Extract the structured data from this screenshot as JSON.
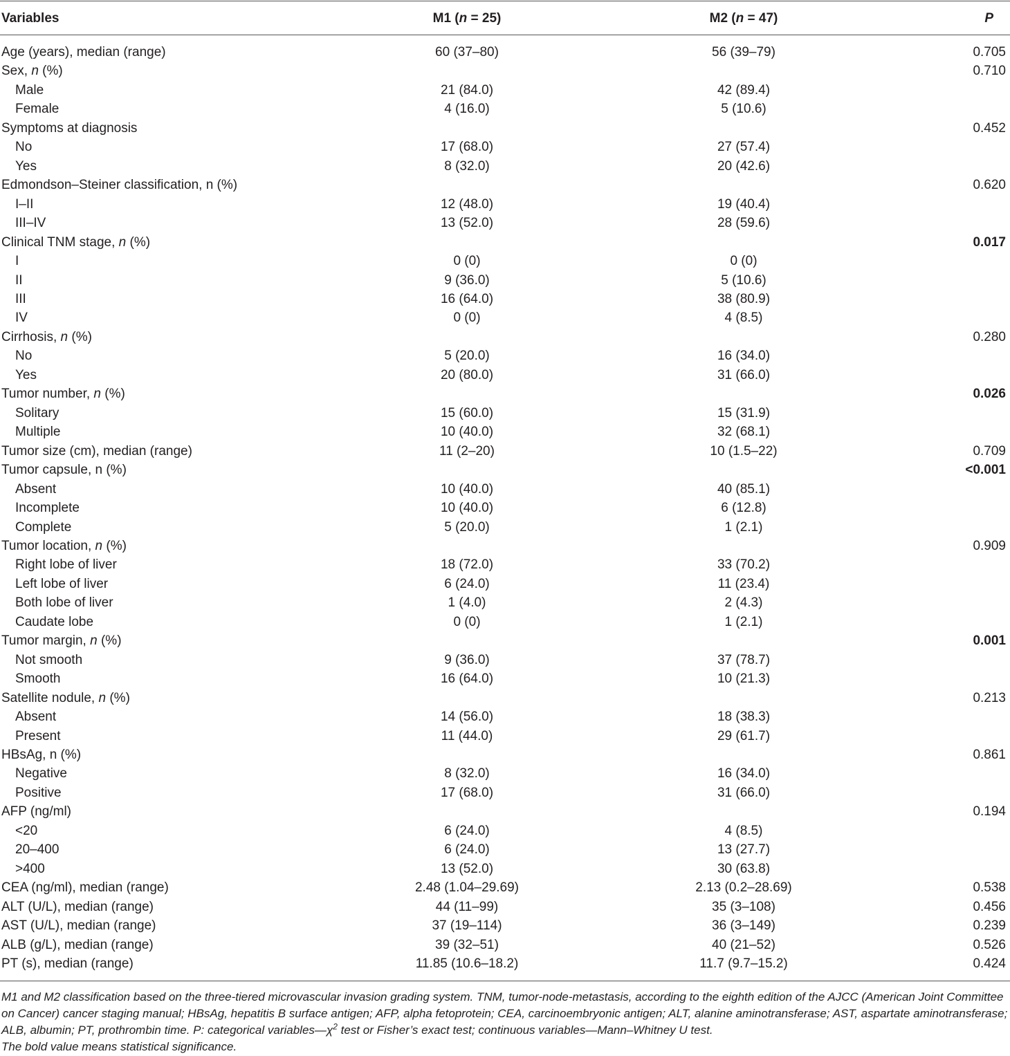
{
  "header": {
    "columns": [
      "Variables",
      [
        "M1 (",
        "n",
        " = 25)"
      ],
      [
        "M2 (",
        "n",
        " = 47)"
      ],
      [
        "",
        "P"
      ]
    ]
  },
  "rows": [
    {
      "label": "Age (years), median (range)",
      "m1": "60 (37–80)",
      "m2": "56 (39–79)",
      "p": "0.705"
    },
    {
      "label": [
        "Sex, ",
        "n",
        " (%)"
      ],
      "p": "0.710"
    },
    {
      "label": "Male",
      "indent": true,
      "m1": "21 (84.0)",
      "m2": "42 (89.4)"
    },
    {
      "label": "Female",
      "indent": true,
      "m1": "4 (16.0)",
      "m2": "5 (10.6)"
    },
    {
      "label": "Symptoms at diagnosis",
      "p": "0.452"
    },
    {
      "label": "No",
      "indent": true,
      "m1": "17 (68.0)",
      "m2": "27 (57.4)"
    },
    {
      "label": "Yes",
      "indent": true,
      "m1": "8 (32.0)",
      "m2": "20 (42.6)"
    },
    {
      "label": "Edmondson–Steiner classification, n (%)",
      "p": "0.620"
    },
    {
      "label": "I–II",
      "indent": true,
      "m1": "12 (48.0)",
      "m2": "19 (40.4)"
    },
    {
      "label": "III–IV",
      "indent": true,
      "m1": "13 (52.0)",
      "m2": "28 (59.6)"
    },
    {
      "label": [
        "Clinical TNM stage, ",
        "n",
        " (%)"
      ],
      "p": "0.017",
      "bold": true
    },
    {
      "label": "I",
      "indent": true,
      "m1": "0 (0)",
      "m2": "0 (0)"
    },
    {
      "label": "II",
      "indent": true,
      "m1": "9 (36.0)",
      "m2": "5 (10.6)"
    },
    {
      "label": "III",
      "indent": true,
      "m1": "16 (64.0)",
      "m2": "38 (80.9)"
    },
    {
      "label": "IV",
      "indent": true,
      "m1": "0 (0)",
      "m2": "4 (8.5)"
    },
    {
      "label": [
        "Cirrhosis, ",
        "n",
        " (%)"
      ],
      "p": "0.280"
    },
    {
      "label": "No",
      "indent": true,
      "m1": "5 (20.0)",
      "m2": "16 (34.0)"
    },
    {
      "label": "Yes",
      "indent": true,
      "m1": "20 (80.0)",
      "m2": "31 (66.0)"
    },
    {
      "label": [
        "Tumor number, ",
        "n",
        " (%)"
      ],
      "p": "0.026",
      "bold": true
    },
    {
      "label": "Solitary",
      "indent": true,
      "m1": "15 (60.0)",
      "m2": "15 (31.9)"
    },
    {
      "label": "Multiple",
      "indent": true,
      "m1": "10 (40.0)",
      "m2": "32 (68.1)"
    },
    {
      "label": "Tumor size (cm), median (range)",
      "m1": "11 (2–20)",
      "m2": "10 (1.5–22)",
      "p": "0.709"
    },
    {
      "label": "Tumor capsule, n (%)",
      "p": "<0.001",
      "bold": true
    },
    {
      "label": "Absent",
      "indent": true,
      "m1": "10 (40.0)",
      "m2": "40 (85.1)"
    },
    {
      "label": "Incomplete",
      "indent": true,
      "m1": "10 (40.0)",
      "m2": "6 (12.8)"
    },
    {
      "label": "Complete",
      "indent": true,
      "m1": "5 (20.0)",
      "m2": "1 (2.1)"
    },
    {
      "label": [
        "Tumor location, ",
        "n",
        " (%)"
      ],
      "p": "0.909"
    },
    {
      "label": "Right lobe of liver",
      "indent": true,
      "m1": "18 (72.0)",
      "m2": "33 (70.2)"
    },
    {
      "label": "Left lobe of liver",
      "indent": true,
      "m1": "6 (24.0)",
      "m2": "11 (23.4)"
    },
    {
      "label": "Both lobe of liver",
      "indent": true,
      "m1": "1 (4.0)",
      "m2": "2 (4.3)"
    },
    {
      "label": "Caudate lobe",
      "indent": true,
      "m1": "0 (0)",
      "m2": "1 (2.1)"
    },
    {
      "label": [
        "Tumor margin, ",
        "n",
        " (%)"
      ],
      "p": "0.001",
      "bold": true
    },
    {
      "label": "Not smooth",
      "indent": true,
      "m1": "9 (36.0)",
      "m2": "37 (78.7)"
    },
    {
      "label": "Smooth",
      "indent": true,
      "m1": "16 (64.0)",
      "m2": "10 (21.3)"
    },
    {
      "label": [
        "Satellite nodule, ",
        "n",
        " (%)"
      ],
      "p": "0.213"
    },
    {
      "label": "Absent",
      "indent": true,
      "m1": "14 (56.0)",
      "m2": "18 (38.3)"
    },
    {
      "label": "Present",
      "indent": true,
      "m1": "11 (44.0)",
      "m2": "29 (61.7)"
    },
    {
      "label": "HBsAg, n (%)",
      "p": "0.861"
    },
    {
      "label": "Negative",
      "indent": true,
      "m1": "8 (32.0)",
      "m2": "16 (34.0)"
    },
    {
      "label": "Positive",
      "indent": true,
      "m1": "17 (68.0)",
      "m2": "31 (66.0)"
    },
    {
      "label": "AFP (ng/ml)",
      "p": "0.194"
    },
    {
      "label": "<20",
      "indent": true,
      "m1": "6 (24.0)",
      "m2": "4 (8.5)"
    },
    {
      "label": "20–400",
      "indent": true,
      "m1": "6 (24.0)",
      "m2": "13 (27.7)"
    },
    {
      "label": ">400",
      "indent": true,
      "m1": "13 (52.0)",
      "m2": "30 (63.8)"
    },
    {
      "label": "CEA (ng/ml), median (range)",
      "m1": "2.48 (1.04–29.69)",
      "m2": "2.13 (0.2–28.69)",
      "p": "0.538"
    },
    {
      "label": "ALT (U/L), median (range)",
      "m1": "44 (11–99)",
      "m2": "35 (3–108)",
      "p": "0.456"
    },
    {
      "label": "AST (U/L), median (range)",
      "m1": "37 (19–114)",
      "m2": "36 (3–149)",
      "p": "0.239"
    },
    {
      "label": "ALB (g/L), median (range)",
      "m1": "39 (32–51)",
      "m2": "40 (21–52)",
      "p": "0.526"
    },
    {
      "label": "PT (s), median (range)",
      "m1": "11.85 (10.6–18.2)",
      "m2": "11.7 (9.7–15.2)",
      "p": "0.424"
    }
  ],
  "footnote": {
    "text": [
      "M1 and M2 classification based on the three-tiered microvascular invasion grading system. TNM, tumor-node-metastasis, according to the eighth edition of the AJCC (American Joint Committee on Cancer) cancer staging manual; HBsAg, hepatitis B surface antigen; AFP, alpha fetoprotein; CEA, carcinoembryonic antigen; ALT, alanine aminotransferase; AST, aspartate aminotransferase; ALB, albumin; PT, prothrombin time. P: categorical variables—χ",
      "2",
      " test or Fisher’s exact test; continuous variables—Mann–Whitney U test."
    ],
    "note": "The bold value means statistical significance."
  }
}
